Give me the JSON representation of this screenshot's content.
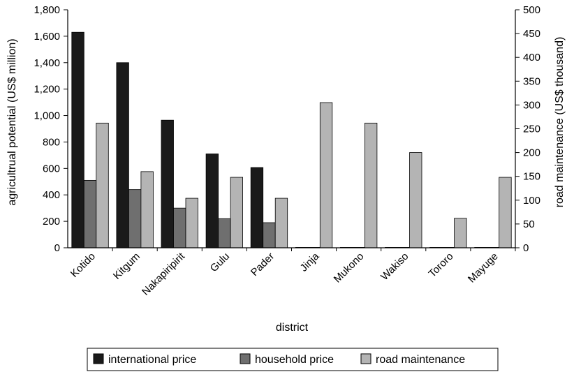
{
  "chart_data": {
    "type": "bar",
    "categories": [
      "Kotido",
      "Kitgum",
      "Nakapiripirit",
      "Gulu",
      "Pader",
      "Jinja",
      "Mukono",
      "Wakiso",
      "Tororo",
      "Mayuge"
    ],
    "series": [
      {
        "name": "international price",
        "axis": "left",
        "color": "#1a1a1a",
        "values": [
          1630,
          1400,
          965,
          710,
          607,
          0,
          0,
          0,
          0,
          0
        ]
      },
      {
        "name": "household price",
        "axis": "left",
        "color": "#6f6f6f",
        "values": [
          510,
          440,
          300,
          220,
          190,
          0,
          0,
          0,
          0,
          0
        ]
      },
      {
        "name": "road maintenance",
        "axis": "right",
        "color": "#b4b4b4",
        "values": [
          262,
          160,
          104,
          148,
          104,
          305,
          262,
          200,
          62,
          148
        ]
      }
    ],
    "xlabel": "district",
    "ylabel": "agricultrual potential (US$ million)",
    "y2label": "road maintenance (US$ thousand)",
    "ylim": [
      0,
      1800
    ],
    "y2lim": [
      0,
      500
    ],
    "yticks": [
      "0",
      "200",
      "400",
      "600",
      "800",
      "1,000",
      "1,200",
      "1,400",
      "1,600",
      "1,800"
    ],
    "y2ticks": [
      "0",
      "50",
      "100",
      "150",
      "200",
      "250",
      "300",
      "350",
      "400",
      "450",
      "500"
    ],
    "grid": false,
    "legend_position": "bottom"
  }
}
